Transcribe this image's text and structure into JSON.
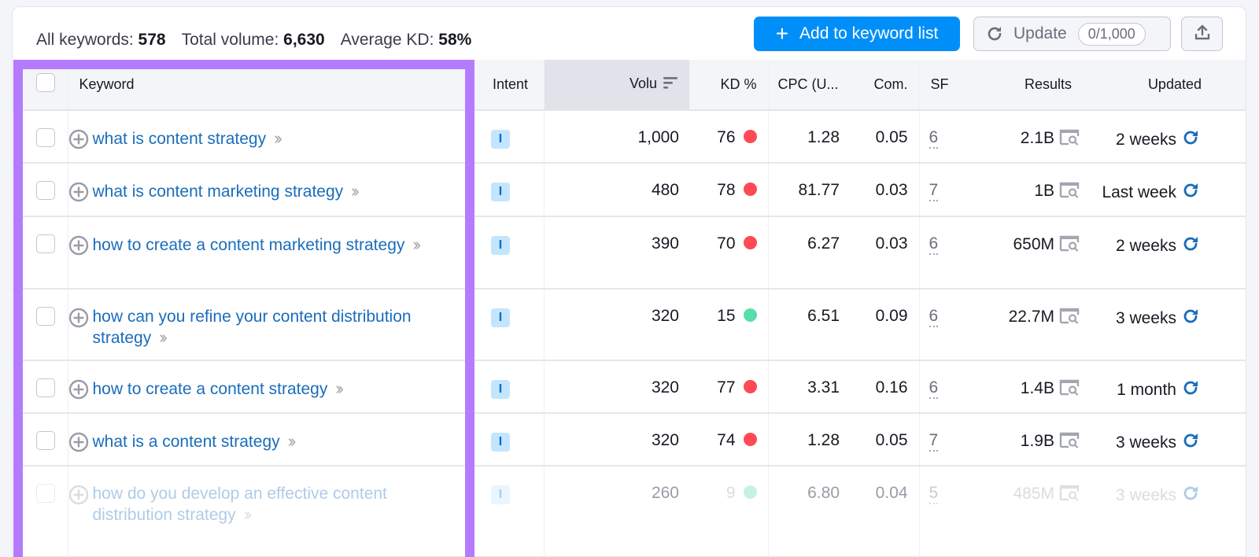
{
  "summary": {
    "all_keywords_label": "All keywords:",
    "all_keywords_value": "578",
    "total_volume_label": "Total volume:",
    "total_volume_value": "6,630",
    "average_kd_label": "Average KD:",
    "average_kd_value": "58%"
  },
  "toolbar": {
    "add_icon": "+",
    "add_label": "Add to keyword list",
    "update_label": "Update",
    "update_counter": "0/1,000",
    "export_icon": "export-icon"
  },
  "columns": {
    "keyword": "Keyword",
    "intent": "Intent",
    "volume": "Volu",
    "kd": "KD %",
    "cpc": "CPC (U...",
    "com": "Com.",
    "sf": "SF",
    "results": "Results",
    "updated": "Updated"
  },
  "colors": {
    "accent": "#008ff8",
    "link": "#1a6dbb",
    "highlight": "#b57bff",
    "kd_hard": "#ff4953",
    "kd_easy": "#59ddaa"
  },
  "rows": [
    {
      "keyword": "what is content strategy",
      "intent": "I",
      "volume": "1,000",
      "kd": "76",
      "kd_color": "#ff4953",
      "cpc": "1.28",
      "com": "0.05",
      "sf": "6",
      "results": "2.1B",
      "updated": "2 weeks"
    },
    {
      "keyword": "what is content marketing strategy",
      "intent": "I",
      "volume": "480",
      "kd": "78",
      "kd_color": "#ff4953",
      "cpc": "81.77",
      "com": "0.03",
      "sf": "7",
      "results": "1B",
      "updated": "Last week"
    },
    {
      "keyword": "how to create a content marketing strategy",
      "intent": "I",
      "volume": "390",
      "kd": "70",
      "kd_color": "#ff4953",
      "cpc": "6.27",
      "com": "0.03",
      "sf": "6",
      "results": "650M",
      "updated": "2 weeks"
    },
    {
      "keyword": "how can you refine your content distribution strategy",
      "intent": "I",
      "volume": "320",
      "kd": "15",
      "kd_color": "#59ddaa",
      "cpc": "6.51",
      "com": "0.09",
      "sf": "6",
      "results": "22.7M",
      "updated": "3 weeks"
    },
    {
      "keyword": "how to create a content strategy",
      "intent": "I",
      "volume": "320",
      "kd": "77",
      "kd_color": "#ff4953",
      "cpc": "3.31",
      "com": "0.16",
      "sf": "6",
      "results": "1.4B",
      "updated": "1 month"
    },
    {
      "keyword": "what is a content strategy",
      "intent": "I",
      "volume": "320",
      "kd": "74",
      "kd_color": "#ff4953",
      "cpc": "1.28",
      "com": "0.05",
      "sf": "7",
      "results": "1.9B",
      "updated": "3 weeks"
    },
    {
      "keyword": "how do you develop an effective content distribution strategy",
      "intent": "I",
      "volume": "260",
      "kd": "9",
      "kd_color": "#59ddaa",
      "cpc": "6.80",
      "com": "0.04",
      "sf": "5",
      "results": "485M",
      "updated": "3 weeks"
    }
  ]
}
